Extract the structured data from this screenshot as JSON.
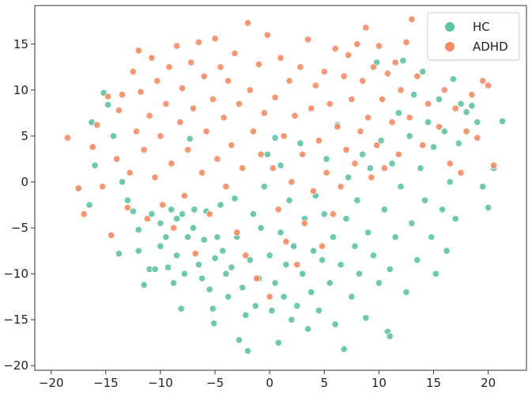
{
  "chart_data": {
    "type": "scatter",
    "title": "",
    "xlabel": "",
    "ylabel": "",
    "xlim": [
      -21.5,
      23.5
    ],
    "ylim": [
      -20.5,
      19.2
    ],
    "xticks": [
      -20,
      -15,
      -10,
      -5,
      0,
      5,
      10,
      15,
      20
    ],
    "yticks": [
      15,
      10,
      5,
      0,
      -5,
      -10,
      -15,
      -20
    ],
    "grid": false,
    "legend": {
      "position": "top-right"
    },
    "series": [
      {
        "name": "HC",
        "color": "#5cc4a0",
        "points": [
          [
            -17.5,
            -0.7
          ],
          [
            -16.5,
            -2.5
          ],
          [
            -16.3,
            6.5
          ],
          [
            -16,
            1.8
          ],
          [
            -15.2,
            9.7
          ],
          [
            -14.8,
            8.4
          ],
          [
            -14.3,
            5
          ],
          [
            -13.8,
            -7.8
          ],
          [
            -13.5,
            0
          ],
          [
            -13,
            -2
          ],
          [
            -12.5,
            -3.2
          ],
          [
            -12,
            -5.2
          ],
          [
            -12,
            -7.5
          ],
          [
            -11.5,
            -11.2
          ],
          [
            -11,
            -9.5
          ],
          [
            -10.8,
            -3.5
          ],
          [
            -10.5,
            -9.5
          ],
          [
            -10,
            -7
          ],
          [
            -10,
            -4.5
          ],
          [
            -9.5,
            -6
          ],
          [
            -9.3,
            -9.3
          ],
          [
            -9,
            -3
          ],
          [
            -8.8,
            -11
          ],
          [
            -8.5,
            -4
          ],
          [
            -8.5,
            -8
          ],
          [
            -8.1,
            -13.8
          ],
          [
            -8,
            -3.5
          ],
          [
            -7.8,
            -10
          ],
          [
            -7.5,
            -6
          ],
          [
            -7.3,
            4.7
          ],
          [
            -7,
            -5
          ],
          [
            -6.9,
            -3
          ],
          [
            -6.5,
            -9
          ],
          [
            -6.2,
            -10.5
          ],
          [
            -6,
            -6.3
          ],
          [
            -5.8,
            -3.2
          ],
          [
            -5.5,
            -11.7
          ],
          [
            -5.2,
            -13.8
          ],
          [
            -5.1,
            -15.4
          ],
          [
            -5,
            -8.3
          ],
          [
            -4.8,
            -6
          ],
          [
            -4.5,
            -2.5
          ],
          [
            -4.3,
            -7.5
          ],
          [
            -4,
            -10
          ],
          [
            -3.8,
            -12.5
          ],
          [
            -3.5,
            -9.3
          ],
          [
            -3.2,
            -1.8
          ],
          [
            -3,
            -6
          ],
          [
            -2.8,
            -17.2
          ],
          [
            -2.5,
            -11.5
          ],
          [
            -2.2,
            -14.5
          ],
          [
            -2,
            -18.4
          ],
          [
            -1.8,
            -8.5
          ],
          [
            -1.5,
            -3.5
          ],
          [
            -1.3,
            -13.5
          ],
          [
            -1,
            -10.5
          ],
          [
            -0.8,
            -5
          ],
          [
            -0.5,
            -0.5
          ],
          [
            -0.2,
            3
          ],
          [
            0,
            -8
          ],
          [
            0.2,
            -14
          ],
          [
            0.5,
            -11
          ],
          [
            0.5,
            4.8
          ],
          [
            0.8,
            -17.5
          ],
          [
            1,
            -5.5
          ],
          [
            1,
            1.8
          ],
          [
            1.3,
            -12.5
          ],
          [
            1.5,
            -9
          ],
          [
            1.8,
            -2
          ],
          [
            2,
            -15
          ],
          [
            2.2,
            -7
          ],
          [
            2.5,
            -13.5
          ],
          [
            2.8,
            4.2
          ],
          [
            3,
            -10
          ],
          [
            3.2,
            -4
          ],
          [
            3.5,
            -16
          ],
          [
            3.8,
            -12
          ],
          [
            4,
            -7.5
          ],
          [
            4.2,
            -1.5
          ],
          [
            4.5,
            -14
          ],
          [
            4.8,
            -8.5
          ],
          [
            5,
            -3.5
          ],
          [
            5.2,
            2.5
          ],
          [
            5.5,
            -11
          ],
          [
            5.8,
            -6
          ],
          [
            6,
            -15.5
          ],
          [
            6.2,
            6.2
          ],
          [
            6.5,
            -9
          ],
          [
            6.8,
            -18.2
          ],
          [
            7,
            -4
          ],
          [
            7.2,
            0.5
          ],
          [
            7.5,
            -12.5
          ],
          [
            7.8,
            -7
          ],
          [
            8,
            -2
          ],
          [
            8.2,
            -10
          ],
          [
            8.5,
            3
          ],
          [
            8.8,
            -14.8
          ],
          [
            9,
            -5.5
          ],
          [
            9.2,
            1.5
          ],
          [
            9.5,
            -8
          ],
          [
            9.8,
            13
          ],
          [
            10,
            -11
          ],
          [
            10.2,
            4.5
          ],
          [
            10.5,
            -3
          ],
          [
            10.8,
            -16.3
          ],
          [
            11,
            -9.5
          ],
          [
            11,
            -16.8
          ],
          [
            11.2,
            2
          ],
          [
            11.5,
            -6
          ],
          [
            11.8,
            7.5
          ],
          [
            12,
            -0.5
          ],
          [
            12.2,
            13.2
          ],
          [
            12.5,
            -12
          ],
          [
            12.8,
            5
          ],
          [
            13,
            -4.5
          ],
          [
            13.2,
            9.5
          ],
          [
            13.5,
            -8.5
          ],
          [
            13.8,
            1.5
          ],
          [
            14,
            12
          ],
          [
            14.2,
            -2
          ],
          [
            14.5,
            6.5
          ],
          [
            14.8,
            -6
          ],
          [
            15,
            3.8
          ],
          [
            15.2,
            -10
          ],
          [
            15.5,
            9
          ],
          [
            15.8,
            -3
          ],
          [
            16,
            5.5
          ],
          [
            16.2,
            -7.5
          ],
          [
            16.5,
            0
          ],
          [
            16.8,
            11.2
          ],
          [
            17,
            -4
          ],
          [
            17.3,
            4.2
          ],
          [
            17.5,
            8.5
          ],
          [
            18,
            7.6
          ],
          [
            18.5,
            8.3
          ],
          [
            19,
            6.5
          ],
          [
            19.5,
            -0.5
          ],
          [
            20,
            -2.8
          ],
          [
            20.5,
            1.5
          ],
          [
            21.3,
            6.6
          ]
        ]
      },
      {
        "name": "ADHD",
        "color": "#f58b63",
        "points": [
          [
            -18.5,
            4.8
          ],
          [
            -17.5,
            -0.7
          ],
          [
            -17,
            -3.5
          ],
          [
            -16.2,
            3.8
          ],
          [
            -15.8,
            6.2
          ],
          [
            -15.3,
            -0.5
          ],
          [
            -14.8,
            9.3
          ],
          [
            -14.5,
            -5.8
          ],
          [
            -14,
            2.5
          ],
          [
            -13.8,
            7.8
          ],
          [
            -13.5,
            9.5
          ],
          [
            -13,
            -2.8
          ],
          [
            -12.8,
            1
          ],
          [
            -12.5,
            12
          ],
          [
            -12.2,
            5.5
          ],
          [
            -12,
            14.3
          ],
          [
            -11.8,
            9.8
          ],
          [
            -11.5,
            3.5
          ],
          [
            -11.2,
            -4
          ],
          [
            -11,
            7.2
          ],
          [
            -10.8,
            13.5
          ],
          [
            -10.5,
            0.5
          ],
          [
            -10.3,
            11
          ],
          [
            -10,
            5
          ],
          [
            -9.8,
            -2.5
          ],
          [
            -9.5,
            8.5
          ],
          [
            -9.2,
            12.5
          ],
          [
            -9,
            2
          ],
          [
            -8.8,
            -5
          ],
          [
            -8.5,
            14.8
          ],
          [
            -8.2,
            6.5
          ],
          [
            -8,
            10.2
          ],
          [
            -7.8,
            -1.5
          ],
          [
            -7.5,
            3.5
          ],
          [
            -7.2,
            13
          ],
          [
            -7,
            8
          ],
          [
            -6.8,
            -7.8
          ],
          [
            -6.5,
            15.2
          ],
          [
            -6.2,
            1
          ],
          [
            -6,
            11.5
          ],
          [
            -5.8,
            5.5
          ],
          [
            -5.5,
            -3.5
          ],
          [
            -5.2,
            9
          ],
          [
            -5,
            15.6
          ],
          [
            -4.8,
            2.5
          ],
          [
            -4.5,
            12.5
          ],
          [
            -4.2,
            7
          ],
          [
            -4,
            -0.5
          ],
          [
            -3.8,
            11
          ],
          [
            -3.5,
            4
          ],
          [
            -3.2,
            14
          ],
          [
            -3,
            -5.5
          ],
          [
            -2.8,
            8.5
          ],
          [
            -2.5,
            1.5
          ],
          [
            -2.2,
            -8
          ],
          [
            -2,
            17.3
          ],
          [
            -1.8,
            10
          ],
          [
            -1.5,
            5.5
          ],
          [
            -1.2,
            -10.5
          ],
          [
            -1,
            12.8
          ],
          [
            -0.8,
            3
          ],
          [
            -0.5,
            7.5
          ],
          [
            -0.2,
            16
          ],
          [
            0,
            -12.5
          ],
          [
            0.3,
            1.5
          ],
          [
            0.5,
            9.2
          ],
          [
            0.8,
            -3
          ],
          [
            1,
            13.5
          ],
          [
            1.3,
            5
          ],
          [
            1.5,
            -6.5
          ],
          [
            1.8,
            11
          ],
          [
            2,
            0
          ],
          [
            2.3,
            7.2
          ],
          [
            2.5,
            -9
          ],
          [
            2.8,
            12.5
          ],
          [
            3,
            3
          ],
          [
            3.2,
            -4.5
          ],
          [
            3.5,
            15.5
          ],
          [
            3.8,
            8
          ],
          [
            4,
            -1
          ],
          [
            4.2,
            10.5
          ],
          [
            4.5,
            4.5
          ],
          [
            4.8,
            -7
          ],
          [
            5,
            12
          ],
          [
            5.2,
            1
          ],
          [
            5.5,
            8.5
          ],
          [
            5.8,
            -3.5
          ],
          [
            6,
            14.5
          ],
          [
            6.2,
            6
          ],
          [
            6.5,
            -0.5
          ],
          [
            6.8,
            11.5
          ],
          [
            7,
            3.5
          ],
          [
            7.2,
            13.8
          ],
          [
            7.5,
            9
          ],
          [
            7.8,
            2
          ],
          [
            8,
            15
          ],
          [
            8.3,
            5.5
          ],
          [
            8.5,
            11
          ],
          [
            8.8,
            16.8
          ],
          [
            9,
            7
          ],
          [
            9.3,
            0.5
          ],
          [
            9.5,
            12.5
          ],
          [
            9.8,
            4
          ],
          [
            10,
            14.8
          ],
          [
            10.3,
            9
          ],
          [
            10.5,
            1.5
          ],
          [
            10.8,
            11.8
          ],
          [
            11.2,
            6.5
          ],
          [
            11.5,
            13
          ],
          [
            11.8,
            3
          ],
          [
            12,
            10
          ],
          [
            12.5,
            15.2
          ],
          [
            12.8,
            7
          ],
          [
            13,
            17.7
          ],
          [
            13.5,
            11.5
          ],
          [
            14,
            4
          ],
          [
            14.5,
            8.5
          ],
          [
            15,
            13.5
          ],
          [
            15.5,
            6
          ],
          [
            16,
            10
          ],
          [
            16.5,
            2
          ],
          [
            17,
            8
          ],
          [
            17.5,
            1
          ],
          [
            18,
            5.5
          ],
          [
            18.5,
            9.5
          ],
          [
            19,
            4.8
          ],
          [
            19.5,
            11
          ],
          [
            20,
            10.5
          ],
          [
            20.5,
            1.8
          ]
        ]
      }
    ]
  }
}
